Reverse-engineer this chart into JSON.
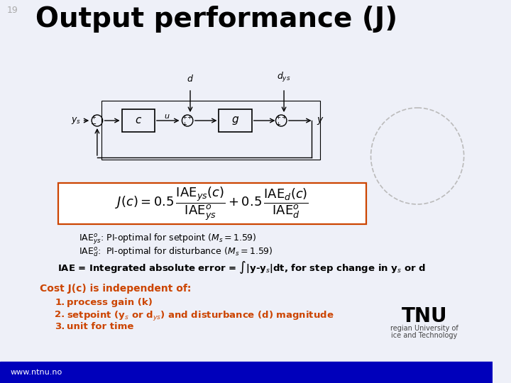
{
  "slide_number": "19",
  "title": "Output performance (J)",
  "title_color": "#000000",
  "title_fontsize": 28,
  "bg_color": "#eef0f8",
  "footer_color": "#0000bb",
  "footer_text": "www.ntnu.no",
  "footer_text_color": "#ffffff",
  "slide_number_color": "#aaaaaa",
  "slide_number_fontsize": 9,
  "iae_line_color": "#000000",
  "cost_header": "Cost J(c) is independent of:",
  "cost_header_color": "#cc4400",
  "cost_items_color": "#cc4400",
  "tnu_text": "TNU",
  "tnu_sub1": "regian University of",
  "tnu_sub2": "ice and Technology",
  "formula_box_color": "#cc4400",
  "dashed_circle_color": "#bbbbbb",
  "diagram_line_color": "#000000",
  "bg_tint": "#eef0f8"
}
